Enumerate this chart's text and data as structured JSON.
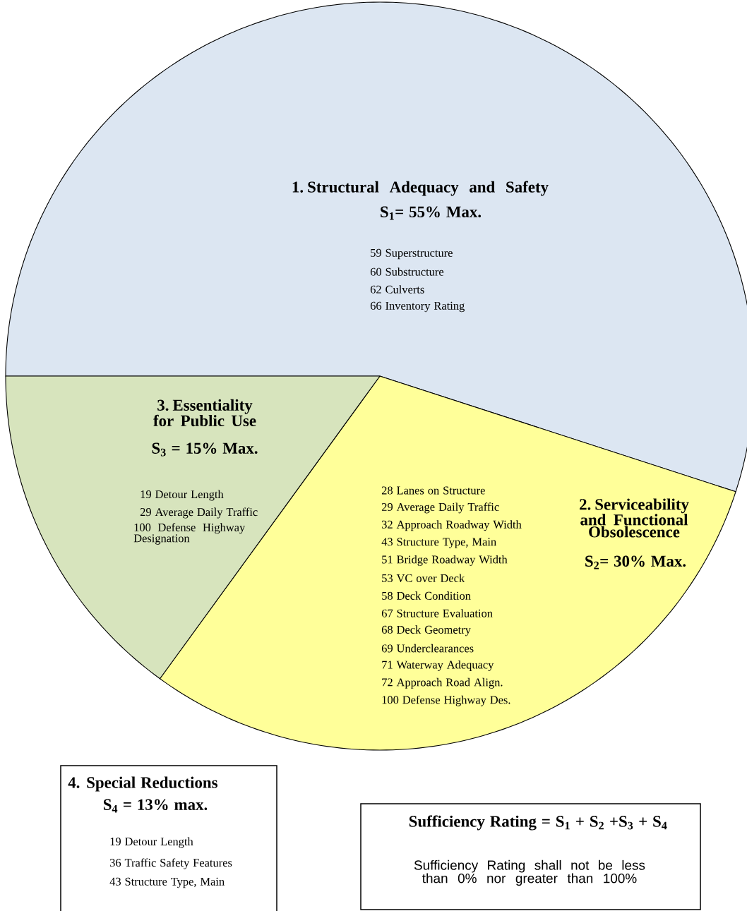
{
  "chart_data": {
    "type": "pie",
    "categories": [
      "1. Structural Adequacy and Safety",
      "2. Serviceability and Functional Obsolescence",
      "3. Essentiality for Public Use"
    ],
    "values": [
      55,
      30,
      15
    ],
    "colors": [
      "#dce6f2",
      "#ffff99",
      "#d7e4bd"
    ],
    "value_labels": [
      "S$_{1}$= 55% Max.",
      "S$_{2}$= 30% Max.",
      "S$_{3}$ = 15% Max."
    ],
    "annotations": [
      "59 Superstructure",
      "60 Substructure",
      "62 Culverts",
      "66 Inventory Rating",
      "28 Lanes on Structure",
      "29 Average Daily Traffic",
      "32 Approach Roadway Width",
      "43 Structure Type, Main",
      "51 Bridge Roadway Width",
      "53 VC over Deck",
      "58 Deck Condition",
      "67 Structure Evaluation",
      "68 Deck Geometry",
      "69 Underclearances",
      "71 Waterway Adequacy",
      "72 Approach Road Align.",
      "100 Defense Highway Des.",
      "19 Detour Length",
      "29 Average Daily Traffic",
      "100 Defense Highway Designation",
      "4. Special Reductions",
      "S$_{4}$ = 13% max.",
      "19 Detour Length",
      "36 Traffic Safety Features",
      "43 Structure Type, Main",
      "Sufficiency Rating = S$_{1}$ + S$_{2}$ +S$_{3}$ + S$_{4}$",
      "Sufficiency Rating shall not be less than 0% nor greater than 100%"
    ]
  }
}
